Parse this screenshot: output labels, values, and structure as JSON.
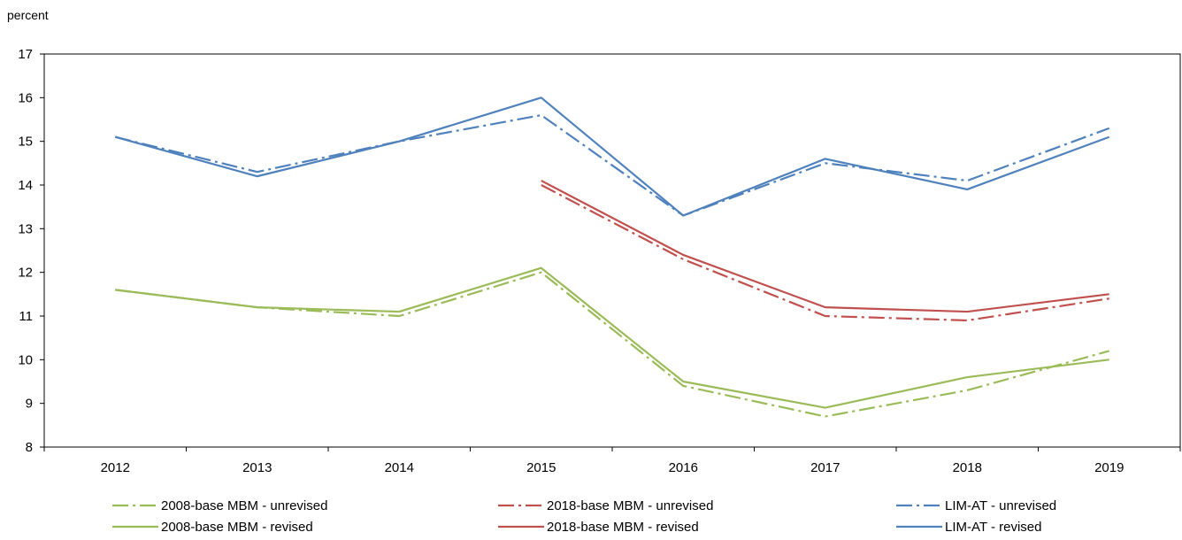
{
  "chart_data": {
    "type": "line",
    "unit_label": "percent",
    "x": [
      "2012",
      "2013",
      "2014",
      "2015",
      "2016",
      "2017",
      "2018",
      "2019"
    ],
    "ylim": [
      8,
      17
    ],
    "yticks": [
      "8",
      "9",
      "10",
      "11",
      "12",
      "13",
      "14",
      "15",
      "16",
      "17"
    ],
    "grid": false,
    "legend_position": "bottom",
    "series": [
      {
        "name": "2008-base MBM - unrevised",
        "color": "#9bbb59",
        "style": "dashdot",
        "values": [
          11.6,
          11.2,
          11.0,
          12.0,
          9.4,
          8.7,
          9.3,
          10.2
        ]
      },
      {
        "name": "2008-base MBM - revised",
        "color": "#9bbb59",
        "style": "solid",
        "values": [
          11.6,
          11.2,
          11.1,
          12.1,
          9.5,
          8.9,
          9.6,
          10.0
        ]
      },
      {
        "name": "2018-base MBM - unrevised",
        "color": "#c0504d",
        "style": "dashdot",
        "values": [
          null,
          null,
          null,
          14.0,
          12.3,
          11.0,
          10.9,
          11.4
        ]
      },
      {
        "name": "2018-base MBM - revised",
        "color": "#c0504d",
        "style": "solid",
        "values": [
          null,
          null,
          null,
          14.1,
          12.4,
          11.2,
          11.1,
          11.5
        ]
      },
      {
        "name": "LIM-AT - unrevised",
        "color": "#4f81bd",
        "style": "dashdot",
        "values": [
          15.1,
          14.3,
          15.0,
          15.6,
          13.3,
          14.5,
          14.1,
          15.3
        ]
      },
      {
        "name": "LIM-AT - revised",
        "color": "#4f81bd",
        "style": "solid",
        "values": [
          15.1,
          14.2,
          15.0,
          16.0,
          13.3,
          14.6,
          13.9,
          15.1
        ]
      }
    ]
  }
}
